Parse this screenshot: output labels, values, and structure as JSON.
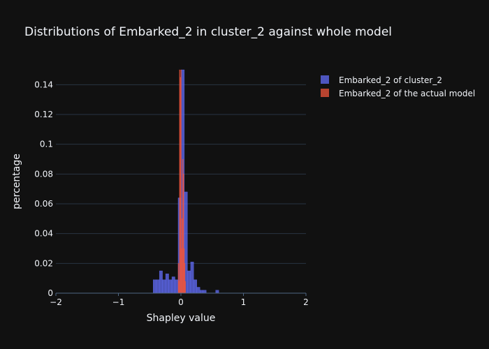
{
  "chart_data": {
    "type": "bar",
    "barmode": "overlay",
    "title": "Distributions of Embarked_2 in cluster_2 against whole model",
    "xlabel": "Shapley value",
    "ylabel": "percentage",
    "xlim": [
      -2,
      2
    ],
    "ylim": [
      0,
      0.15
    ],
    "x_ticks": [
      -2,
      -1,
      0,
      1,
      2
    ],
    "x_tick_labels": [
      "−2",
      "−1",
      "0",
      "1",
      "2"
    ],
    "y_ticks": [
      0,
      0.02,
      0.04,
      0.06,
      0.08,
      0.1,
      0.12,
      0.14
    ],
    "y_tick_labels": [
      "0",
      "0.02",
      "0.04",
      "0.06",
      "0.08",
      "0.1",
      "0.12",
      "0.14"
    ],
    "grid": true,
    "legend_position": "top-right",
    "bin_width": 0.05,
    "series": [
      {
        "name": "Embarked_2 of cluster_2",
        "color": "#636efa",
        "x": [
          -0.42,
          -0.37,
          -0.32,
          -0.27,
          -0.22,
          -0.17,
          -0.12,
          -0.07,
          -0.02,
          0.03,
          0.08,
          0.13,
          0.18,
          0.23,
          0.28,
          0.33,
          0.38,
          0.58
        ],
        "y": [
          0.009,
          0.009,
          0.015,
          0.009,
          0.013,
          0.009,
          0.011,
          0.009,
          0.064,
          0.15,
          0.068,
          0.015,
          0.021,
          0.009,
          0.004,
          0.002,
          0.002,
          0.002
        ]
      },
      {
        "name": "Embarked_2 of the actual model",
        "color": "#ef553b",
        "x": [
          -0.04,
          -0.03,
          -0.02,
          -0.01,
          0.0,
          0.01,
          0.02,
          0.03,
          0.04,
          0.05,
          0.06,
          0.07
        ],
        "y": [
          0.02,
          0.008,
          0.15,
          0.145,
          0.15,
          0.03,
          0.05,
          0.09,
          0.08,
          0.03,
          0.02,
          0.008
        ]
      }
    ]
  }
}
